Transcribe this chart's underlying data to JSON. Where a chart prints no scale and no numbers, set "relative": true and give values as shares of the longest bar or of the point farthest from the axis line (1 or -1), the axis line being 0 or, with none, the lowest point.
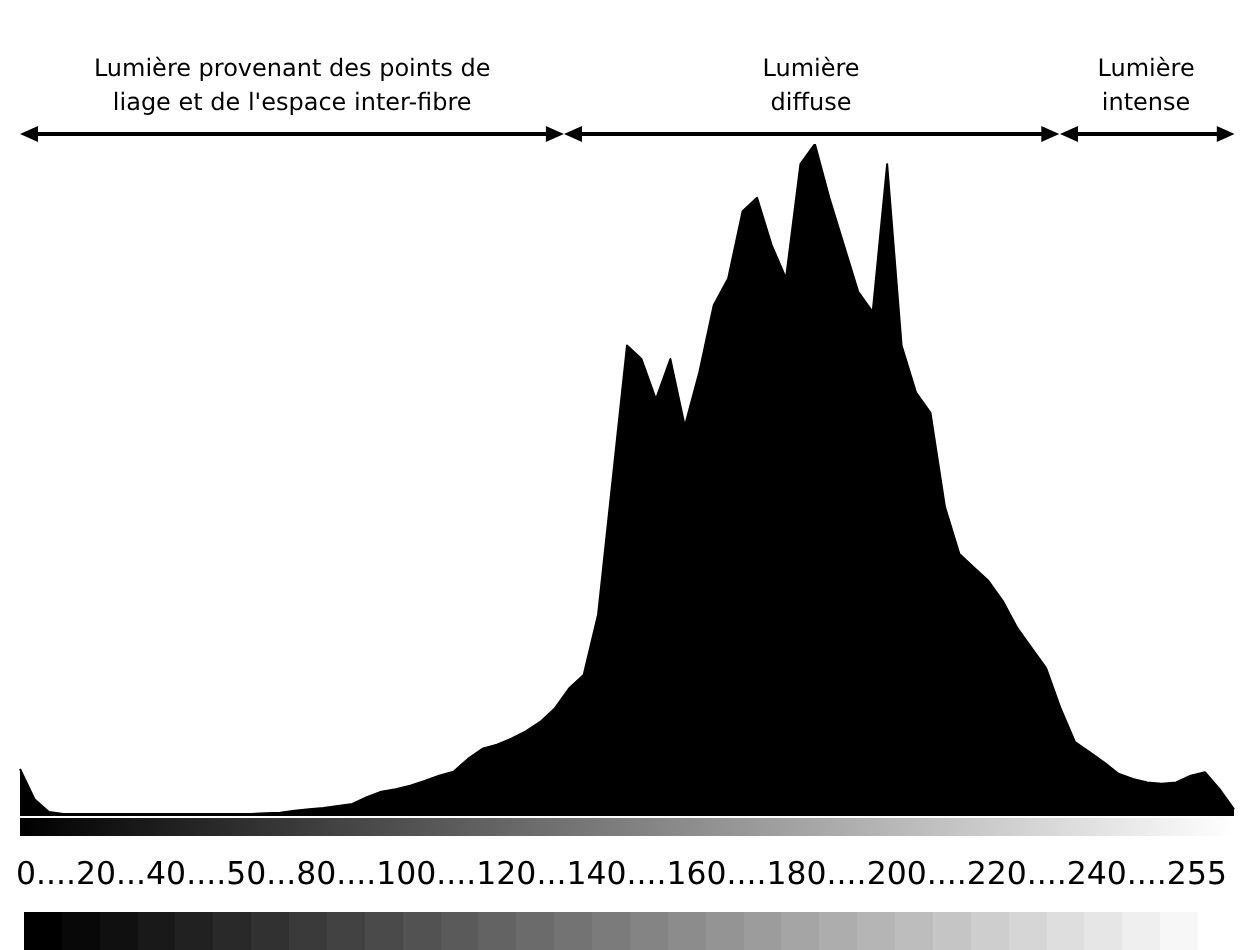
{
  "chart_data": {
    "type": "area",
    "relative": true,
    "color": "#000000",
    "categories": [
      null,
      null,
      null,
      null,
      null,
      null,
      null,
      null,
      null,
      null,
      null,
      null,
      null,
      null,
      null,
      null,
      null,
      null,
      null,
      null,
      null,
      null,
      null,
      null,
      null,
      null,
      null,
      null,
      null,
      null,
      null,
      null,
      null,
      null,
      null,
      null,
      null,
      null,
      null,
      null,
      null,
      null,
      null,
      null,
      null,
      null,
      null,
      null,
      null,
      null,
      null,
      null,
      null,
      null,
      null,
      null,
      null,
      null,
      null,
      null,
      null,
      null,
      null,
      null,
      null,
      null,
      null,
      null,
      null,
      null,
      null,
      null,
      null,
      null,
      null,
      null,
      null,
      null,
      null,
      null,
      null,
      null,
      null,
      null,
      null
    ],
    "values": [
      0.07,
      0.025,
      0.006,
      0.003,
      0.003,
      0.003,
      0.003,
      0.003,
      0.003,
      0.003,
      0.003,
      0.003,
      0.003,
      0.003,
      0.003,
      0.003,
      0.003,
      0.004,
      0.005,
      0.008,
      0.01,
      0.012,
      0.015,
      0.018,
      0.028,
      0.036,
      0.04,
      0.045,
      0.052,
      0.06,
      0.066,
      0.085,
      0.1,
      0.106,
      0.115,
      0.126,
      0.14,
      0.16,
      0.19,
      0.21,
      0.3,
      0.5,
      0.7,
      0.68,
      0.62,
      0.68,
      0.58,
      0.66,
      0.76,
      0.8,
      0.9,
      0.92,
      0.85,
      0.8,
      0.97,
      1,
      0.92,
      0.85,
      0.78,
      0.75,
      0.97,
      0.7,
      0.63,
      0.6,
      0.46,
      0.39,
      0.37,
      0.35,
      0.32,
      0.28,
      0.25,
      0.22,
      0.16,
      0.11,
      0.095,
      0.08,
      0.063,
      0.055,
      0.05,
      0.048,
      0.05,
      0.06,
      0.065,
      0.04,
      0.01
    ],
    "tick_labels": false,
    "legend": false,
    "xlabel": "0....20...40....50...80....100....120...140....160....180....200....220....240....255",
    "annotations": [
      "Lumière provenant des points de\nliage et de l'espace inter-fibre",
      "Lumière\ndiffuse",
      "Lumière\nintense"
    ]
  }
}
